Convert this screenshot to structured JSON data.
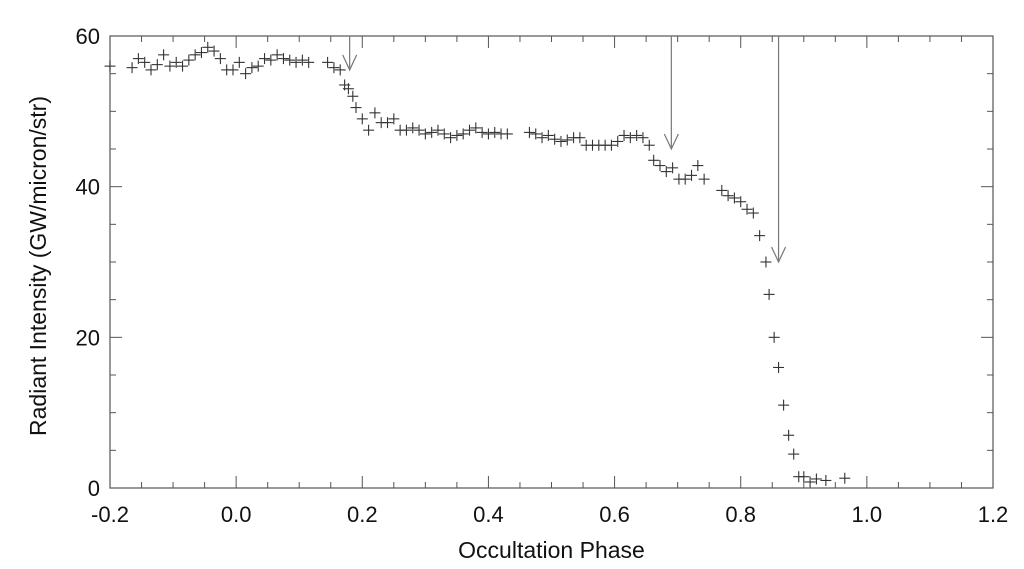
{
  "chart_data": {
    "type": "scatter",
    "title": "",
    "xlabel": "Occultation Phase",
    "ylabel": "Radiant Intensity (GW/micron/str)",
    "xlim": [
      -0.2,
      1.2
    ],
    "ylim": [
      0,
      60
    ],
    "xticks": [
      "-0.2",
      "0.0",
      "0.2",
      "0.4",
      "0.6",
      "0.8",
      "1.0",
      "1.2"
    ],
    "yticks": [
      "0",
      "20",
      "40",
      "60"
    ],
    "marker": "plus",
    "grid": false,
    "arrows": [
      {
        "x": 0.18,
        "y_from": 60,
        "y_to": 55.5
      },
      {
        "x": 0.69,
        "y_from": 60,
        "y_to": 45
      },
      {
        "x": 0.86,
        "y_from": 60,
        "y_to": 30
      }
    ],
    "x": [
      -0.2,
      -0.165,
      -0.155,
      -0.145,
      -0.135,
      -0.125,
      -0.115,
      -0.105,
      -0.095,
      -0.085,
      -0.075,
      -0.065,
      -0.055,
      -0.045,
      -0.035,
      -0.025,
      -0.015,
      -0.005,
      0.005,
      0.015,
      0.025,
      0.035,
      0.045,
      0.055,
      0.065,
      0.075,
      0.085,
      0.095,
      0.105,
      0.115,
      0.145,
      0.155,
      0.165,
      0.172,
      0.178,
      0.185,
      0.19,
      0.2,
      0.21,
      0.22,
      0.23,
      0.24,
      0.25,
      0.26,
      0.27,
      0.28,
      0.29,
      0.3,
      0.31,
      0.32,
      0.33,
      0.34,
      0.35,
      0.36,
      0.37,
      0.38,
      0.39,
      0.4,
      0.41,
      0.42,
      0.43,
      0.465,
      0.475,
      0.485,
      0.495,
      0.505,
      0.515,
      0.525,
      0.535,
      0.545,
      0.555,
      0.565,
      0.575,
      0.585,
      0.595,
      0.605,
      0.615,
      0.625,
      0.635,
      0.645,
      0.655,
      0.662,
      0.672,
      0.682,
      0.692,
      0.702,
      0.712,
      0.722,
      0.732,
      0.742,
      0.77,
      0.78,
      0.79,
      0.8,
      0.81,
      0.82,
      0.83,
      0.84,
      0.845,
      0.853,
      0.86,
      0.868,
      0.876,
      0.884,
      0.892,
      0.9,
      0.91,
      0.92,
      0.935,
      0.965
    ],
    "y": [
      56.0,
      55.8,
      57.0,
      56.5,
      55.5,
      56.2,
      57.5,
      56.0,
      56.5,
      56.0,
      56.8,
      57.5,
      57.8,
      58.5,
      58.0,
      57.0,
      55.5,
      55.5,
      56.5,
      55.0,
      55.8,
      56.0,
      57.0,
      56.8,
      57.5,
      57.0,
      56.8,
      56.5,
      56.8,
      56.5,
      56.5,
      55.8,
      55.5,
      53.5,
      53.0,
      52.0,
      50.5,
      49.0,
      47.5,
      49.8,
      48.5,
      48.5,
      49.0,
      47.5,
      47.5,
      47.8,
      47.5,
      47.0,
      47.2,
      47.5,
      47.0,
      46.5,
      46.8,
      47.0,
      47.5,
      47.8,
      47.2,
      47.0,
      47.2,
      47.0,
      47.0,
      47.2,
      47.0,
      46.5,
      46.8,
      46.3,
      46.0,
      46.2,
      46.5,
      46.5,
      45.5,
      45.5,
      45.5,
      45.5,
      45.5,
      46.0,
      46.8,
      46.5,
      46.8,
      46.5,
      45.5,
      43.5,
      42.8,
      42.0,
      42.5,
      41.0,
      41.0,
      41.5,
      42.8,
      41.0,
      39.5,
      38.8,
      38.5,
      38.0,
      37.0,
      36.5,
      33.5,
      30.0,
      25.7,
      20.0,
      16.0,
      11.0,
      7.0,
      4.5,
      1.5,
      1.5,
      0.8,
      1.2,
      1.0,
      1.3
    ]
  }
}
